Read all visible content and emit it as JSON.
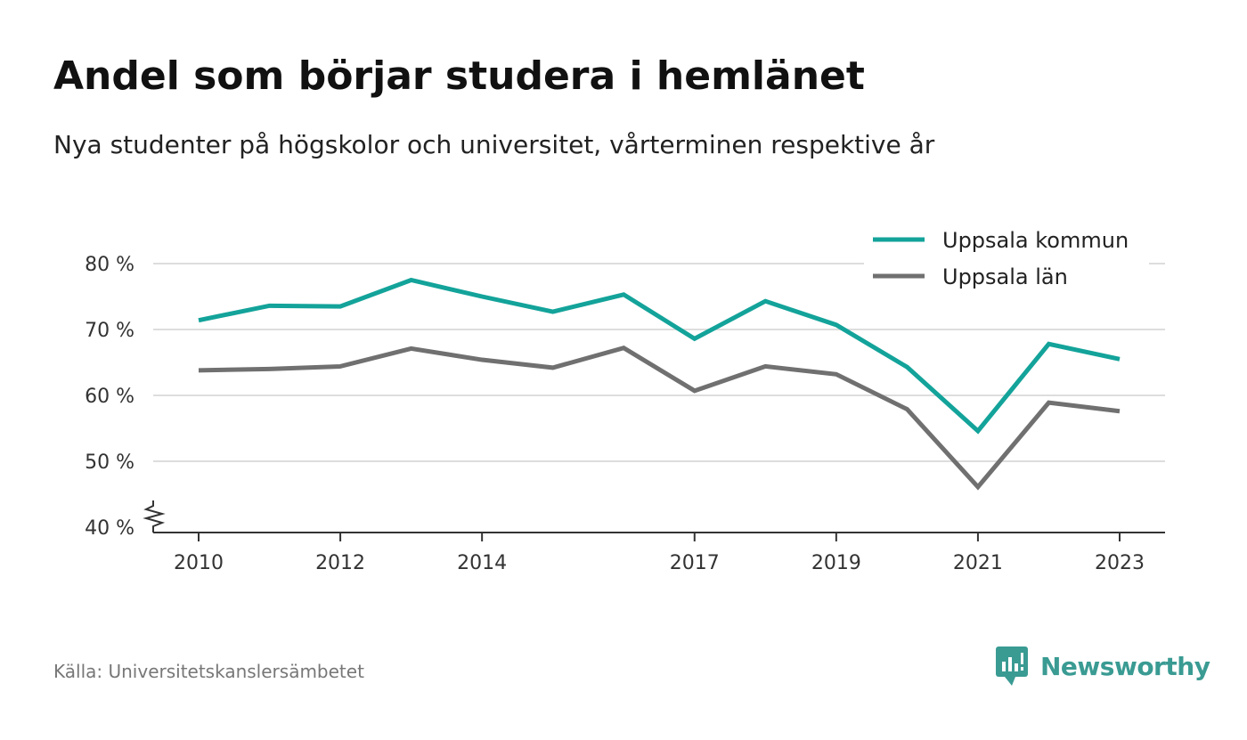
{
  "title": "Andel som börjar studera i hemlänet",
  "subtitle": "Nya studenter på högskolor och universitet, vårterminen respektive år",
  "source": "Källa: Universitetskanslersämbetet",
  "brand": {
    "name": "Newsworthy",
    "icon": "newsworthy-logo-icon",
    "color": "#3a9b93"
  },
  "chart_data": {
    "type": "line",
    "x": [
      2010,
      2011,
      2012,
      2013,
      2014,
      2015,
      2016,
      2017,
      2018,
      2019,
      2020,
      2021,
      2022,
      2023
    ],
    "x_ticks": [
      "2010",
      "2012",
      "2014",
      "2017",
      "2019",
      "2021",
      "2023"
    ],
    "y_ticks": [
      "40 %",
      "50 %",
      "60 %",
      "70 %",
      "80 %"
    ],
    "ylim": [
      40,
      80
    ],
    "y_axis_break": true,
    "grid": true,
    "legend_position": "top-right",
    "series": [
      {
        "name": "Uppsala kommun",
        "color": "#13a39a",
        "values": [
          71.4,
          73.6,
          73.5,
          77.5,
          75.0,
          72.7,
          75.3,
          68.6,
          74.3,
          70.7,
          64.3,
          54.6,
          67.8,
          65.5
        ]
      },
      {
        "name": "Uppsala län",
        "color": "#707070",
        "values": [
          63.8,
          64.0,
          64.4,
          67.1,
          65.4,
          64.2,
          67.2,
          60.7,
          64.4,
          63.2,
          57.9,
          46.1,
          58.9,
          57.6
        ]
      }
    ]
  }
}
